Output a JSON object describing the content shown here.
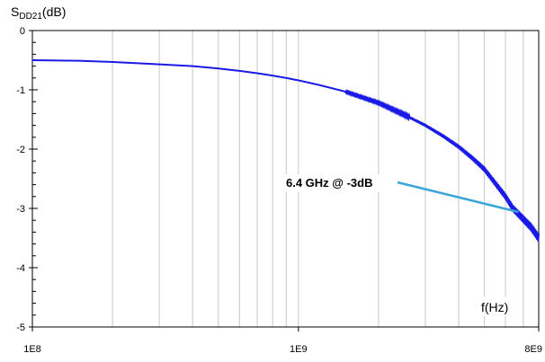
{
  "chart_data": {
    "type": "line",
    "ylabel_main": "S",
    "ylabel_sub": "DD21",
    "ylabel_unit": "(dB)",
    "xlabel": "f(Hz)",
    "x_scale": "log",
    "xlim": [
      100000000.0,
      8000000000.0
    ],
    "ylim": [
      -5,
      0
    ],
    "x_ticks": [
      {
        "value": 100000000.0,
        "label": "1E8"
      },
      {
        "value": 1000000000.0,
        "label": "1E9"
      },
      {
        "value": 8000000000.0,
        "label": "8E9"
      }
    ],
    "y_ticks": [
      {
        "value": 0,
        "label": "0"
      },
      {
        "value": -1,
        "label": "-1"
      },
      {
        "value": -2,
        "label": "-2"
      },
      {
        "value": -3,
        "label": "-3"
      },
      {
        "value": -4,
        "label": "-4"
      },
      {
        "value": -5,
        "label": "-5"
      }
    ],
    "grid": "vertical-minor",
    "series": [
      {
        "color": "#1a1ae6",
        "x": [
          100000000.0,
          150000000.0,
          200000000.0,
          300000000.0,
          400000000.0,
          500000000.0,
          600000000.0,
          700000000.0,
          800000000.0,
          900000000.0,
          1000000000.0,
          1200000000.0,
          1500000000.0,
          2000000000.0,
          2500000000.0,
          3000000000.0,
          3500000000.0,
          4000000000.0,
          4500000000.0,
          5000000000.0,
          5500000000.0,
          6000000000.0,
          6400000000.0,
          7000000000.0,
          7500000000.0,
          8000000000.0
        ],
        "y": [
          -0.5,
          -0.51,
          -0.53,
          -0.57,
          -0.6,
          -0.64,
          -0.68,
          -0.72,
          -0.76,
          -0.8,
          -0.84,
          -0.92,
          -1.03,
          -1.22,
          -1.42,
          -1.6,
          -1.78,
          -1.96,
          -2.15,
          -2.34,
          -2.58,
          -2.8,
          -3.0,
          -3.18,
          -3.32,
          -3.5
        ]
      }
    ],
    "annotation": {
      "text": "6.4 GHz @ -3dB",
      "color": "#d0187a",
      "line_color": "#3aa6d8",
      "target": {
        "x": 6400000000.0,
        "y": -3.0
      }
    }
  }
}
